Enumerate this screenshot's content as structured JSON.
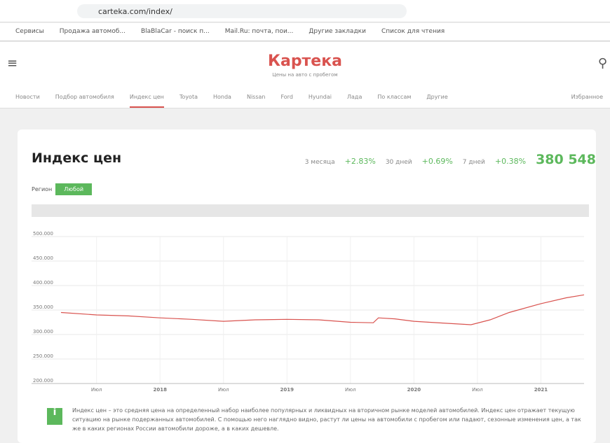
{
  "browser": {
    "url": "carteka.com/index/",
    "bookmarks": [
      "Сервисы",
      "Продажа автомоб...",
      "BlaBlaCar - поиск п...",
      "Mail.Ru: почта, пои...",
      "Другие закладки",
      "Список для чтения"
    ]
  },
  "site": {
    "logo": "Картека",
    "tagline": "Цены на авто с пробегом",
    "nav": [
      "Новости",
      "Подбор автомобиля",
      "Индекс цен",
      "Toyota",
      "Honda",
      "Nissan",
      "Ford",
      "Hyundai",
      "Лада",
      "По классам",
      "Другие"
    ],
    "favorites": "Избранное"
  },
  "index": {
    "title": "Индекс цен",
    "stats": [
      {
        "period": "3 месяца",
        "change": "+2.83%"
      },
      {
        "period": "30 дней",
        "change": "+0.69%"
      },
      {
        "period": "7 дней",
        "change": "+0.38%"
      }
    ],
    "value": "380 548",
    "region_label": "Регион",
    "region_button": "Любой"
  },
  "chart_data": {
    "type": "line",
    "x": [
      2017.22,
      2017.5,
      2017.75,
      2018,
      2018.25,
      2018.5,
      2018.75,
      2019,
      2019.25,
      2019.5,
      2019.68,
      2019.72,
      2019.85,
      2020,
      2020.25,
      2020.45,
      2020.6,
      2020.75,
      2021,
      2021.2,
      2021.34
    ],
    "series": [
      {
        "color": "#d9534f",
        "values": [
          345000,
          340000,
          338000,
          334000,
          331000,
          327000,
          330000,
          331000,
          330000,
          325000,
          324000,
          334000,
          332000,
          327000,
          323000,
          320000,
          330000,
          345000,
          363000,
          375000,
          381000
        ]
      }
    ],
    "xlim": [
      2017.22,
      2021.34
    ],
    "xticks": [
      {
        "value": 2017.5,
        "label": "Июл"
      },
      2018,
      {
        "value": 2018.5,
        "label": "Июл"
      },
      2019,
      {
        "value": 2019.5,
        "label": "Июл"
      },
      2020,
      {
        "value": 2020.5,
        "label": "Июл"
      },
      2021
    ],
    "ylim": [
      200000,
      500000
    ],
    "yticks": [
      {
        "value": 200000,
        "label": "200.000"
      },
      {
        "value": 250000,
        "label": "250.000"
      },
      {
        "value": 300000,
        "label": "300.000"
      },
      {
        "value": 350000,
        "label": "350.000"
      },
      {
        "value": 400000,
        "label": "400.000"
      },
      {
        "value": 450000,
        "label": "450.000"
      },
      {
        "value": 500000,
        "label": "500.000"
      }
    ],
    "grid": true
  },
  "info": "Индекс цен – это средняя цена на определенный набор наиболее популярных и ликвидных на вторичном рынке моделей автомобилей. Индекс цен отражает текущую ситуацию на рынке подержанных автомобилей. С помощью него наглядно видно, растут ли цены на автомобили с пробегом или падают, сезонные изменения цен, а так же в каких регионах России автомобили дороже, а в каких дешевле."
}
